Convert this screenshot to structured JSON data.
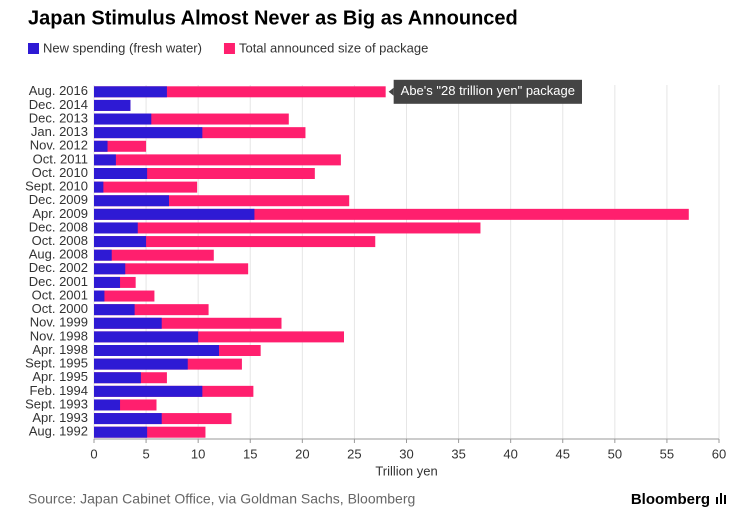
{
  "chart_data": {
    "type": "bar",
    "orientation": "horizontal",
    "title": "Japan Stimulus Almost Never as Big as Announced",
    "categories": [
      "Aug. 2016",
      "Dec. 2014",
      "Dec. 2013",
      "Jan. 2013",
      "Nov. 2012",
      "Oct. 2011",
      "Oct. 2010",
      "Sept. 2010",
      "Dec. 2009",
      "Apr. 2009",
      "Dec. 2008",
      "Oct. 2008",
      "Aug. 2008",
      "Dec. 2002",
      "Dec. 2001",
      "Oct. 2001",
      "Oct. 2000",
      "Nov. 1999",
      "Nov. 1998",
      "Apr. 1998",
      "Sept. 1995",
      "Apr. 1995",
      "Feb. 1994",
      "Sept. 1993",
      "Apr. 1993",
      "Aug. 1992"
    ],
    "series": [
      {
        "name": "New spending (fresh water)",
        "color": "#2e1ad4",
        "values": [
          7.0,
          3.5,
          5.5,
          10.4,
          1.3,
          2.1,
          5.1,
          0.9,
          7.2,
          15.4,
          4.2,
          5.0,
          1.7,
          3.0,
          2.5,
          1.0,
          3.9,
          6.5,
          10.0,
          12.0,
          9.0,
          4.5,
          10.4,
          2.5,
          6.5,
          5.1
        ]
      },
      {
        "name": "Total announced size of package",
        "color": "#ff1f6e",
        "values": [
          28,
          3.5,
          18.7,
          20.3,
          5.0,
          23.7,
          21.2,
          9.9,
          24.5,
          57.1,
          37.1,
          27.0,
          11.5,
          14.8,
          4.0,
          5.8,
          11.0,
          18.0,
          24.0,
          16.0,
          14.2,
          7.0,
          15.3,
          6.0,
          13.2,
          10.7
        ]
      }
    ],
    "xlim": [
      0,
      60
    ],
    "xticks": [
      0,
      5,
      10,
      15,
      20,
      25,
      30,
      35,
      40,
      45,
      50,
      55,
      60
    ],
    "xlabel": "Trillion yen",
    "grid": true,
    "annotation": "Abe's \"28 trillion yen\" package",
    "source": "Source: Japan Cabinet Office, via Goldman Sachs, Bloomberg",
    "brand": "Bloomberg"
  }
}
